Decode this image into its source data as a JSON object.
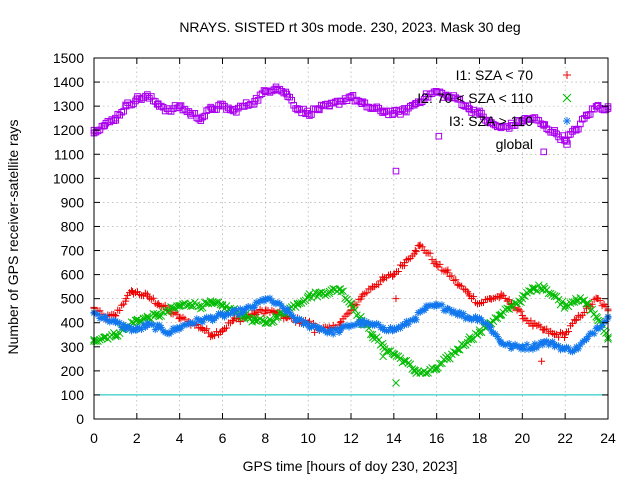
{
  "chart_data": {
    "type": "scatter",
    "title": "NRAYS. SISTED rt 30s mode. 230, 2023. Mask 30 deg",
    "xlabel": "GPS time [hours of doy 230, 2023]",
    "ylabel": "Number of GPS receiver-satellite rays",
    "xlim": [
      0,
      24
    ],
    "ylim": [
      0,
      1500
    ],
    "xticks": [
      0,
      2,
      4,
      6,
      8,
      10,
      12,
      14,
      16,
      18,
      20,
      22,
      24
    ],
    "yticks": [
      0,
      100,
      200,
      300,
      400,
      500,
      600,
      700,
      800,
      900,
      1000,
      1100,
      1200,
      1300,
      1400,
      1500
    ],
    "grid": true,
    "legend_position": "top-right",
    "reference_line": {
      "y": 100,
      "color": "#00c0c0"
    },
    "series": [
      {
        "name": "I1: SZA < 70",
        "color": "#ee0000",
        "marker": "+",
        "x": [
          0,
          0.5,
          1,
          1.5,
          1.8,
          2.5,
          3,
          3.5,
          4,
          4.5,
          5,
          5.5,
          6,
          6.5,
          7,
          7.5,
          8,
          8.5,
          9,
          9.5,
          10,
          10.5,
          11,
          11.5,
          12,
          12.5,
          13,
          13.5,
          14,
          14.5,
          15,
          15.2,
          15.6,
          16,
          16.5,
          17,
          17.5,
          18,
          18.5,
          19,
          19.5,
          20,
          20.5,
          21,
          21.5,
          22,
          22.5,
          23,
          23.5,
          24
        ],
        "values": [
          460,
          420,
          430,
          500,
          530,
          510,
          480,
          450,
          420,
          400,
          380,
          350,
          370,
          410,
          420,
          440,
          450,
          440,
          420,
          410,
          400,
          380,
          370,
          400,
          450,
          510,
          550,
          580,
          600,
          650,
          700,
          720,
          690,
          640,
          610,
          560,
          520,
          480,
          500,
          510,
          480,
          430,
          390,
          370,
          350,
          350,
          410,
          460,
          500,
          450
        ],
        "outliers": [
          {
            "x": 10.3,
            "y": 360
          },
          {
            "x": 14.1,
            "y": 500
          },
          {
            "x": 20.9,
            "y": 240
          }
        ]
      },
      {
        "name": "I2: 70 < SZA < 110",
        "color": "#00bb00",
        "marker": "x",
        "x": [
          0,
          0.5,
          1,
          1.5,
          2,
          2.5,
          3,
          3.5,
          4,
          4.5,
          5,
          5.5,
          6,
          6.5,
          7,
          7.5,
          8,
          8.5,
          9,
          9.5,
          10,
          10.5,
          11,
          11.5,
          12,
          12.5,
          13,
          13.5,
          14,
          14.5,
          15,
          15.5,
          16,
          16.5,
          17,
          17.5,
          18,
          18.5,
          19,
          19.5,
          20,
          20.5,
          21,
          21.5,
          22,
          22.5,
          23,
          23.5,
          24
        ],
        "values": [
          330,
          340,
          350,
          380,
          410,
          420,
          430,
          450,
          470,
          480,
          470,
          480,
          470,
          450,
          430,
          410,
          400,
          420,
          450,
          480,
          510,
          520,
          530,
          540,
          480,
          410,
          350,
          300,
          270,
          240,
          200,
          190,
          210,
          250,
          290,
          330,
          360,
          400,
          430,
          470,
          500,
          540,
          550,
          510,
          470,
          500,
          480,
          420,
          340
        ],
        "outliers": [
          {
            "x": 13.5,
            "y": 260
          },
          {
            "x": 14.1,
            "y": 150
          }
        ]
      },
      {
        "name": "I3: SZA > 110",
        "color": "#1177ee",
        "marker": "*",
        "x": [
          0,
          0.5,
          1,
          1.5,
          2,
          2.5,
          3,
          3.5,
          4,
          4.5,
          5,
          5.5,
          6,
          6.5,
          7,
          7.5,
          8,
          8.5,
          9,
          9.5,
          10,
          10.5,
          11,
          11.5,
          12,
          12.5,
          13,
          13.5,
          14,
          14.5,
          15,
          15.5,
          16,
          16.5,
          17,
          17.5,
          18,
          18.5,
          19,
          19.5,
          20,
          20.5,
          21,
          21.5,
          22,
          22.5,
          23,
          23.5,
          24
        ],
        "values": [
          440,
          420,
          400,
          380,
          370,
          390,
          380,
          360,
          380,
          400,
          410,
          420,
          430,
          440,
          450,
          470,
          500,
          480,
          450,
          410,
          390,
          380,
          360,
          370,
          390,
          400,
          390,
          380,
          370,
          390,
          420,
          460,
          470,
          460,
          440,
          420,
          420,
          380,
          320,
          300,
          300,
          300,
          320,
          310,
          290,
          290,
          330,
          380,
          420
        ],
        "outliers": []
      },
      {
        "name": "global",
        "color": "#aa00ee",
        "marker": "square",
        "x": [
          0,
          0.5,
          1,
          1.5,
          2,
          2.5,
          3,
          3.5,
          4,
          4.5,
          5,
          5.5,
          6,
          6.5,
          7,
          7.5,
          8,
          8.5,
          9,
          9.5,
          10,
          10.5,
          11,
          11.5,
          12,
          12.5,
          13,
          13.5,
          14,
          14.5,
          15,
          15.5,
          16,
          16.5,
          17,
          17.5,
          18,
          18.5,
          19,
          19.5,
          20,
          20.5,
          21,
          21.5,
          22,
          22.5,
          23,
          23.5,
          24
        ],
        "values": [
          1200,
          1220,
          1250,
          1300,
          1330,
          1340,
          1310,
          1280,
          1300,
          1270,
          1250,
          1290,
          1300,
          1280,
          1300,
          1320,
          1360,
          1380,
          1350,
          1290,
          1270,
          1290,
          1300,
          1320,
          1340,
          1310,
          1290,
          1280,
          1270,
          1280,
          1310,
          1340,
          1360,
          1340,
          1330,
          1290,
          1270,
          1230,
          1210,
          1220,
          1240,
          1250,
          1220,
          1190,
          1160,
          1200,
          1260,
          1300,
          1290
        ],
        "outliers": [
          {
            "x": 14.1,
            "y": 1030
          },
          {
            "x": 16.1,
            "y": 1175
          },
          {
            "x": 21,
            "y": 1110
          }
        ]
      }
    ]
  }
}
